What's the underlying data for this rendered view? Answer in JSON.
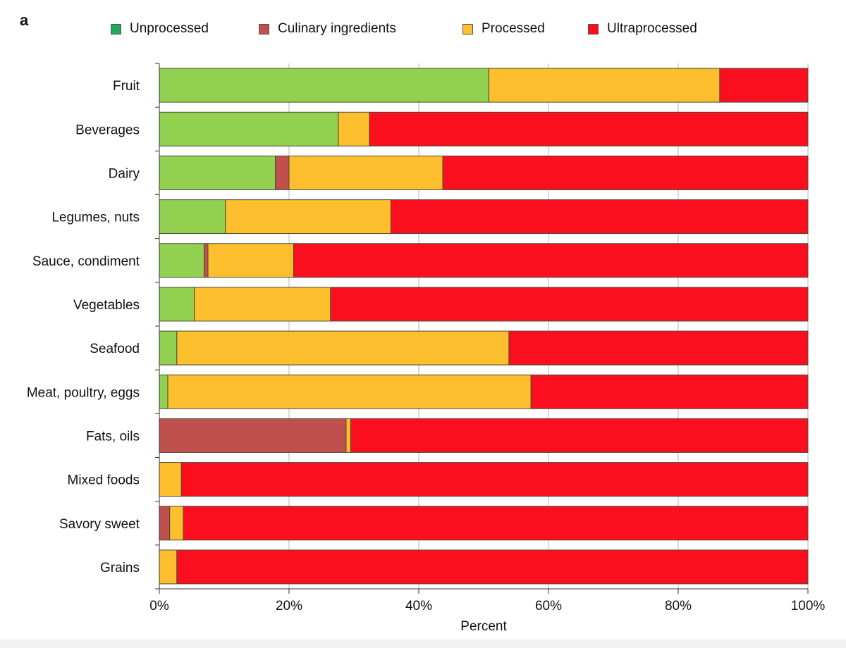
{
  "panel_label": "a",
  "colors": {
    "Unprocessed": "#92d050",
    "Culinary ingredients": "#c0504d",
    "Processed": "#fdbf2d",
    "Ultraprocessed": "#fb0f1f",
    "Unprocessed_legend": "#22a65a"
  },
  "chart_data": {
    "type": "bar",
    "orientation": "horizontal",
    "stacked": true,
    "title": "",
    "xlabel": "Percent",
    "ylabel": "",
    "xlim": [
      0,
      100
    ],
    "xticks": [
      "0%",
      "20%",
      "40%",
      "60%",
      "80%",
      "100%"
    ],
    "xtick_values": [
      0,
      20,
      40,
      60,
      80,
      100
    ],
    "grid": "vertical",
    "legend_position": "top",
    "categories": [
      "Fruit",
      "Beverages",
      "Dairy",
      "Legumes, nuts",
      "Sauce, condiment",
      "Vegetables",
      "Seafood",
      "Meat, poultry, eggs",
      "Fats, oils",
      "Mixed foods",
      "Savory sweet",
      "Grains"
    ],
    "series": [
      {
        "name": "Unprocessed",
        "values": [
          50.8,
          27.6,
          17.9,
          10.2,
          6.9,
          5.4,
          2.7,
          1.3,
          0,
          0,
          0,
          0
        ]
      },
      {
        "name": "Culinary ingredients",
        "values": [
          0,
          0,
          2.1,
          0,
          0.6,
          0,
          0,
          0,
          28.8,
          0,
          1.6,
          0
        ]
      },
      {
        "name": "Processed",
        "values": [
          35.6,
          4.8,
          23.7,
          25.5,
          13.2,
          21.0,
          51.2,
          56.0,
          0.7,
          3.4,
          2.1,
          2.7
        ]
      },
      {
        "name": "Ultraprocessed",
        "values": [
          13.6,
          67.6,
          56.3,
          64.3,
          79.3,
          73.6,
          46.1,
          42.7,
          70.5,
          96.6,
          96.3,
          97.3
        ]
      }
    ]
  }
}
